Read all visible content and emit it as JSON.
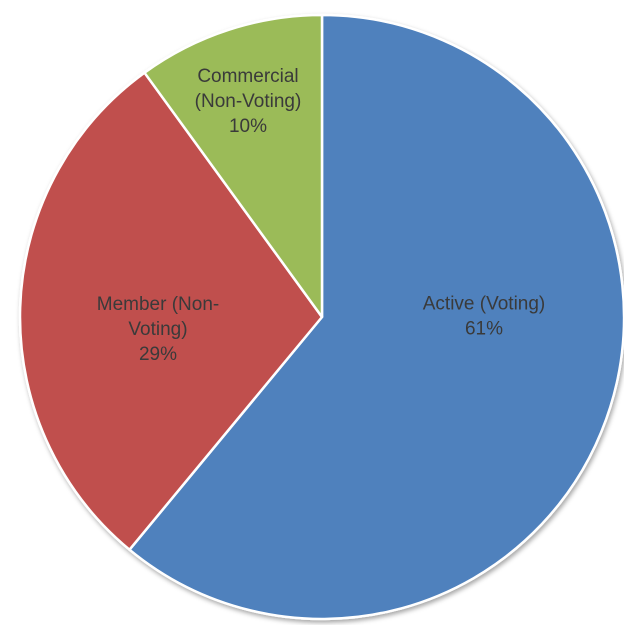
{
  "chart_data": {
    "type": "pie",
    "title": "",
    "slices": [
      {
        "label_lines": [
          "Active (Voting)",
          "61%"
        ],
        "category": "Active (Voting)",
        "value": 61,
        "color": "#4f81bd"
      },
      {
        "label_lines": [
          "Member (Non-",
          "Voting)",
          "29%"
        ],
        "category": "Member (Non-Voting)",
        "value": 29,
        "color": "#c0504d"
      },
      {
        "label_lines": [
          "Commercial",
          "(Non-Voting)",
          "10%"
        ],
        "category": "Commercial (Non-Voting)",
        "value": 10,
        "color": "#9bbb59"
      }
    ],
    "start_angle_deg": 0,
    "direction": "clockwise",
    "legend": "none",
    "data_labels": "inside"
  }
}
